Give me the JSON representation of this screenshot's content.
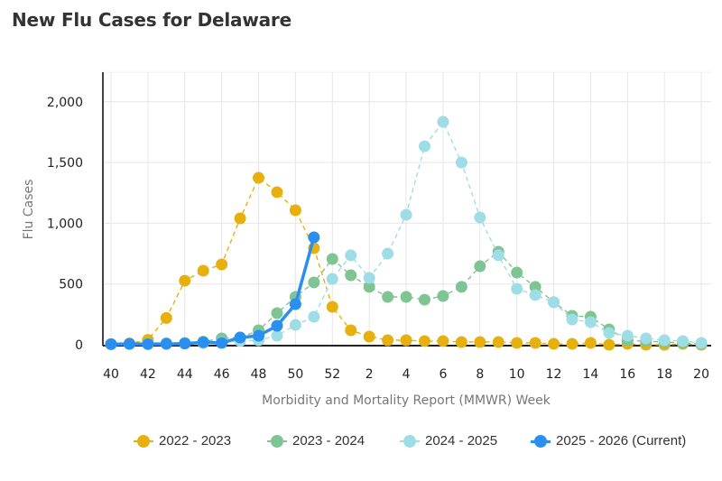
{
  "title": "New Flu Cases for Delaware",
  "chart_data": {
    "type": "line",
    "title": "New Flu Cases for Delaware",
    "xlabel": "Morbidity and Mortality Report (MMWR) Week",
    "ylabel": "Flu Cases",
    "ylim": [
      0,
      2250
    ],
    "yticks": [
      0,
      500,
      1000,
      1500,
      2000
    ],
    "ytick_labels": [
      "0",
      "500",
      "1,000",
      "1,500",
      "2,000"
    ],
    "x": [
      40,
      41,
      42,
      43,
      44,
      45,
      46,
      47,
      48,
      49,
      50,
      51,
      52,
      1,
      2,
      3,
      4,
      5,
      6,
      7,
      8,
      9,
      10,
      11,
      12,
      13,
      14,
      15,
      16,
      17,
      18,
      19,
      20
    ],
    "xtick_labels": [
      "40",
      "42",
      "44",
      "46",
      "48",
      "50",
      "52",
      "2",
      "4",
      "6",
      "8",
      "10",
      "12",
      "14",
      "16",
      "18",
      "20"
    ],
    "grid": true,
    "legend_position": "bottom",
    "series": [
      {
        "name": "2022 - 2023",
        "color": "#E6B10E",
        "style": "dashed",
        "values": [
          5,
          10,
          40,
          220,
          527,
          609,
          661,
          1040,
          1374,
          1256,
          1107,
          795,
          312,
          119,
          67,
          37,
          37,
          30,
          30,
          22,
          22,
          22,
          15,
          15,
          7,
          7,
          15,
          0,
          7,
          0,
          0,
          7,
          0
        ]
      },
      {
        "name": "2023 - 2024",
        "color": "#7FC493",
        "style": "dashed",
        "values": [
          5,
          8,
          10,
          12,
          15,
          25,
          52,
          59,
          119,
          260,
          394,
          513,
          706,
          572,
          476,
          394,
          394,
          371,
          401,
          476,
          646,
          765,
          594,
          476,
          350,
          238,
          230,
          126,
          37,
          30,
          22,
          15,
          7
        ]
      },
      {
        "name": "2024 - 2025",
        "color": "#9EDDE6",
        "style": "dashed",
        "values": [
          3,
          5,
          7,
          8,
          10,
          15,
          20,
          30,
          37,
          74,
          163,
          230,
          542,
          736,
          550,
          750,
          1070,
          1634,
          1835,
          1500,
          1048,
          736,
          460,
          409,
          350,
          208,
          186,
          97,
          74,
          52,
          37,
          30,
          15
        ]
      },
      {
        "name": "2025 - 2026 (Current)",
        "color": "#2B8FEF",
        "style": "solid",
        "values": [
          5,
          7,
          5,
          7,
          10,
          20,
          15,
          59,
          74,
          156,
          334,
          884
        ]
      }
    ]
  }
}
